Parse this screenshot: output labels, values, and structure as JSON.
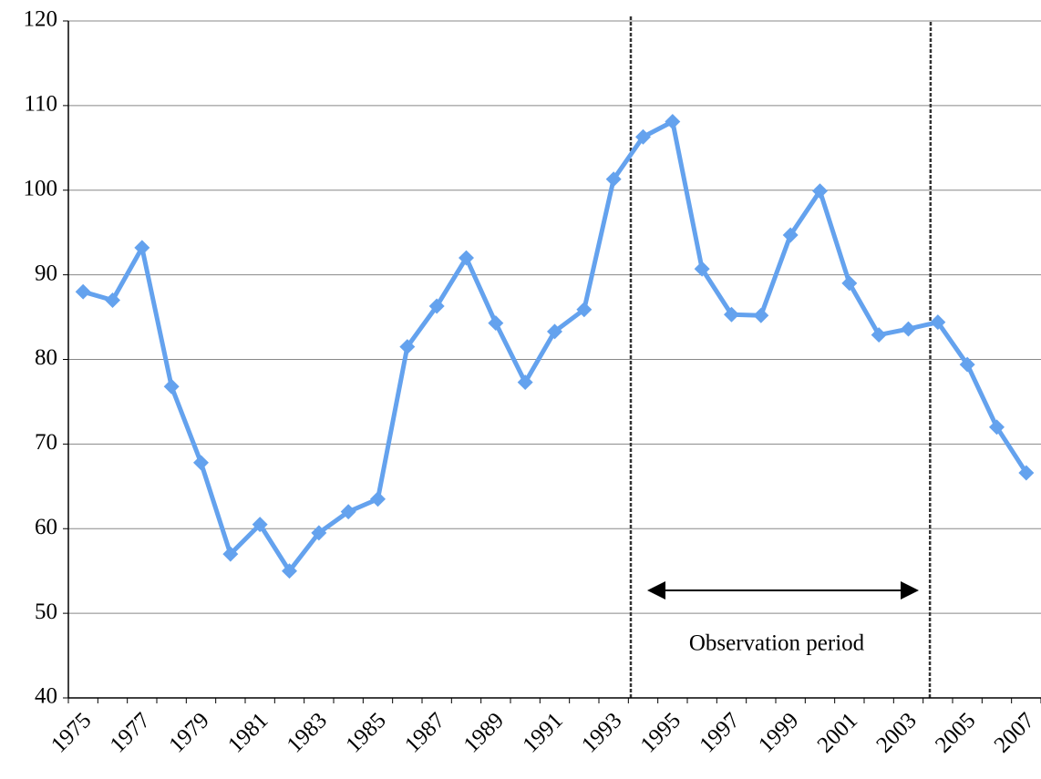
{
  "chart_data": {
    "type": "line",
    "categories": [
      "1975",
      null,
      "1977",
      null,
      "1979",
      null,
      "1981",
      null,
      "1983",
      null,
      "1985",
      null,
      "1987",
      null,
      "1989",
      null,
      "1991",
      null,
      "1993",
      null,
      "1995",
      null,
      "1997",
      null,
      "1999",
      null,
      "2001",
      null,
      "2003",
      null,
      "2005",
      null,
      "2007"
    ],
    "values": [
      88,
      87,
      93.2,
      76.8,
      67.8,
      57,
      60.5,
      55,
      59.5,
      62,
      63.5,
      81.5,
      86.3,
      92,
      84.3,
      77.3,
      83.3,
      85.9,
      101.3,
      106.3,
      108.1,
      90.7,
      85.3,
      85.2,
      94.7,
      99.9,
      89,
      82.9,
      83.6,
      84.4,
      79.4,
      72,
      66.6
    ],
    "color": "#64a2ee",
    "ylim": [
      40,
      120
    ],
    "yticks": [
      40,
      50,
      60,
      70,
      80,
      90,
      100,
      110,
      120
    ],
    "grid": true,
    "annotation": "Observation period"
  }
}
